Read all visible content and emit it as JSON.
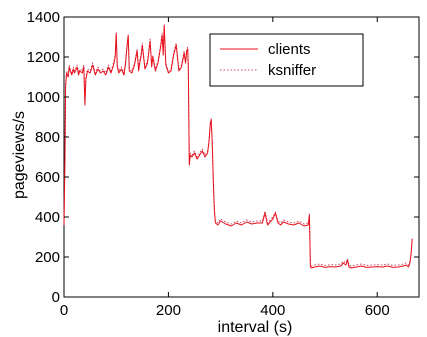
{
  "chart_data": {
    "type": "line",
    "xlabel": "interval (s)",
    "ylabel": "pageviews/s",
    "xlim": [
      0,
      680
    ],
    "ylim": [
      0,
      1400
    ],
    "xticks": [
      0,
      200,
      400,
      600
    ],
    "yticks": [
      0,
      200,
      400,
      600,
      800,
      1000,
      1200,
      1400
    ],
    "legend_position": "top-right",
    "grid": false,
    "series": [
      {
        "name": "clients",
        "color": "#e8101c",
        "style": "solid",
        "x": [
          0,
          2,
          3,
          5,
          8,
          10,
          12,
          15,
          18,
          20,
          22,
          25,
          28,
          30,
          35,
          38,
          40,
          42,
          45,
          50,
          55,
          60,
          65,
          70,
          75,
          80,
          85,
          90,
          95,
          98,
          100,
          102,
          105,
          110,
          115,
          118,
          120,
          123,
          125,
          130,
          135,
          140,
          143,
          145,
          148,
          150,
          155,
          160,
          165,
          168,
          170,
          175,
          180,
          185,
          188,
          190,
          192,
          195,
          200,
          205,
          210,
          215,
          218,
          220,
          225,
          230,
          233,
          235,
          237,
          238,
          240,
          242,
          245,
          250,
          255,
          260,
          265,
          270,
          275,
          278,
          280,
          282,
          284,
          286,
          288,
          290,
          295,
          300,
          310,
          320,
          330,
          340,
          350,
          360,
          370,
          380,
          385,
          390,
          395,
          400,
          405,
          410,
          415,
          420,
          430,
          440,
          450,
          460,
          468,
          470,
          472,
          474,
          480,
          490,
          500,
          510,
          520,
          530,
          535,
          540,
          543,
          546,
          550,
          560,
          570,
          580,
          590,
          600,
          610,
          620,
          630,
          640,
          650,
          655,
          660,
          663,
          665,
          667
        ],
        "y": [
          360,
          700,
          1050,
          1120,
          1100,
          1150,
          1130,
          1110,
          1140,
          1120,
          1130,
          1150,
          1110,
          1130,
          1120,
          1150,
          960,
          1090,
          1130,
          1120,
          1160,
          1110,
          1140,
          1120,
          1130,
          1110,
          1150,
          1120,
          1160,
          1200,
          1320,
          1150,
          1120,
          1140,
          1110,
          1170,
          1230,
          1310,
          1130,
          1120,
          1160,
          1230,
          1130,
          1170,
          1210,
          1260,
          1140,
          1170,
          1280,
          1150,
          1200,
          1130,
          1170,
          1250,
          1310,
          1210,
          1360,
          1160,
          1120,
          1130,
          1210,
          1260,
          1180,
          1130,
          1150,
          1220,
          1170,
          1230,
          1240,
          1150,
          660,
          710,
          700,
          720,
          690,
          710,
          730,
          700,
          720,
          780,
          860,
          890,
          760,
          580,
          430,
          370,
          360,
          380,
          365,
          355,
          370,
          360,
          375,
          365,
          370,
          370,
          420,
          360,
          375,
          390,
          420,
          370,
          360,
          375,
          365,
          360,
          370,
          355,
          360,
          410,
          150,
          145,
          150,
          155,
          148,
          152,
          150,
          155,
          170,
          160,
          185,
          150,
          145,
          150,
          155,
          148,
          150,
          152,
          150,
          155,
          148,
          150,
          155,
          160,
          150,
          175,
          220,
          290
        ]
      },
      {
        "name": "ksniffer",
        "color": "#d04060",
        "style": "dotted",
        "x": [
          0,
          2,
          3,
          5,
          8,
          10,
          12,
          15,
          18,
          20,
          22,
          25,
          28,
          30,
          35,
          38,
          40,
          42,
          45,
          50,
          55,
          60,
          65,
          70,
          75,
          80,
          85,
          90,
          95,
          98,
          100,
          102,
          105,
          110,
          115,
          118,
          120,
          123,
          125,
          130,
          135,
          140,
          143,
          145,
          148,
          150,
          155,
          160,
          165,
          168,
          170,
          175,
          180,
          185,
          188,
          190,
          192,
          195,
          200,
          205,
          210,
          215,
          218,
          220,
          225,
          230,
          233,
          235,
          237,
          238,
          240,
          242,
          245,
          250,
          255,
          260,
          265,
          270,
          275,
          278,
          280,
          282,
          284,
          286,
          288,
          290,
          295,
          300,
          310,
          320,
          330,
          340,
          350,
          360,
          370,
          380,
          385,
          390,
          395,
          400,
          405,
          410,
          415,
          420,
          430,
          440,
          450,
          460,
          468,
          470,
          472,
          474,
          480,
          490,
          500,
          510,
          520,
          530,
          535,
          540,
          543,
          546,
          550,
          560,
          570,
          580,
          590,
          600,
          610,
          620,
          630,
          640,
          650,
          655,
          660,
          663,
          665,
          667
        ],
        "y": [
          380,
          720,
          1060,
          1130,
          1110,
          1160,
          1140,
          1120,
          1150,
          1130,
          1140,
          1160,
          1120,
          1140,
          1130,
          1160,
          980,
          1100,
          1140,
          1130,
          1170,
          1120,
          1150,
          1130,
          1140,
          1120,
          1160,
          1130,
          1170,
          1210,
          1310,
          1160,
          1130,
          1150,
          1120,
          1180,
          1240,
          1300,
          1140,
          1130,
          1170,
          1240,
          1140,
          1180,
          1220,
          1270,
          1150,
          1180,
          1290,
          1160,
          1210,
          1140,
          1180,
          1260,
          1320,
          1220,
          1350,
          1170,
          1130,
          1140,
          1220,
          1270,
          1190,
          1140,
          1160,
          1230,
          1180,
          1240,
          1250,
          1160,
          680,
          720,
          710,
          730,
          700,
          720,
          740,
          710,
          730,
          790,
          870,
          880,
          770,
          590,
          440,
          380,
          370,
          390,
          375,
          365,
          380,
          370,
          385,
          375,
          380,
          380,
          430,
          370,
          385,
          400,
          425,
          380,
          370,
          385,
          375,
          370,
          380,
          365,
          370,
          415,
          160,
          155,
          160,
          165,
          158,
          162,
          160,
          165,
          180,
          170,
          190,
          160,
          155,
          160,
          165,
          158,
          160,
          162,
          160,
          165,
          158,
          160,
          165,
          170,
          160,
          180,
          230,
          295
        ]
      }
    ]
  }
}
